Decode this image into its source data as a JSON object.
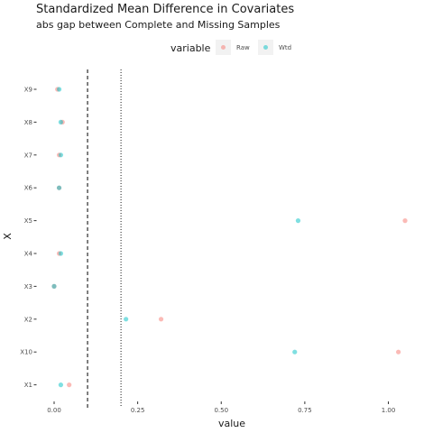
{
  "chart_data": {
    "type": "scatter",
    "title": "Standardized Mean Difference in Covariates",
    "subtitle": "abs gap between Complete and Missing Samples",
    "xlabel": "value",
    "ylabel": "X",
    "xlim": [
      -0.02,
      1.07
    ],
    "x_ticks": [
      0.0,
      0.25,
      0.5,
      0.75,
      1.0
    ],
    "x_tick_labels": [
      "0.00",
      "0.25",
      "0.50",
      "0.75",
      "1.00"
    ],
    "categories": [
      "X9",
      "X8",
      "X7",
      "X6",
      "X5",
      "X4",
      "X3",
      "X2",
      "X10",
      "X1"
    ],
    "reference_lines": [
      {
        "value": 0.1,
        "style": "dashed"
      },
      {
        "value": 0.2,
        "style": "dotted"
      }
    ],
    "legend": {
      "title": "variable",
      "position": "top"
    },
    "colors": {
      "Raw": "#F8766D",
      "Wtd": "#00BFC4"
    },
    "series": [
      {
        "name": "Raw",
        "values": [
          0.01,
          0.025,
          0.015,
          0.015,
          1.05,
          0.015,
          0.0,
          0.32,
          1.03,
          0.045
        ]
      },
      {
        "name": "Wtd",
        "values": [
          0.015,
          0.02,
          0.02,
          0.015,
          0.73,
          0.02,
          0.0,
          0.215,
          0.72,
          0.02
        ]
      }
    ]
  }
}
